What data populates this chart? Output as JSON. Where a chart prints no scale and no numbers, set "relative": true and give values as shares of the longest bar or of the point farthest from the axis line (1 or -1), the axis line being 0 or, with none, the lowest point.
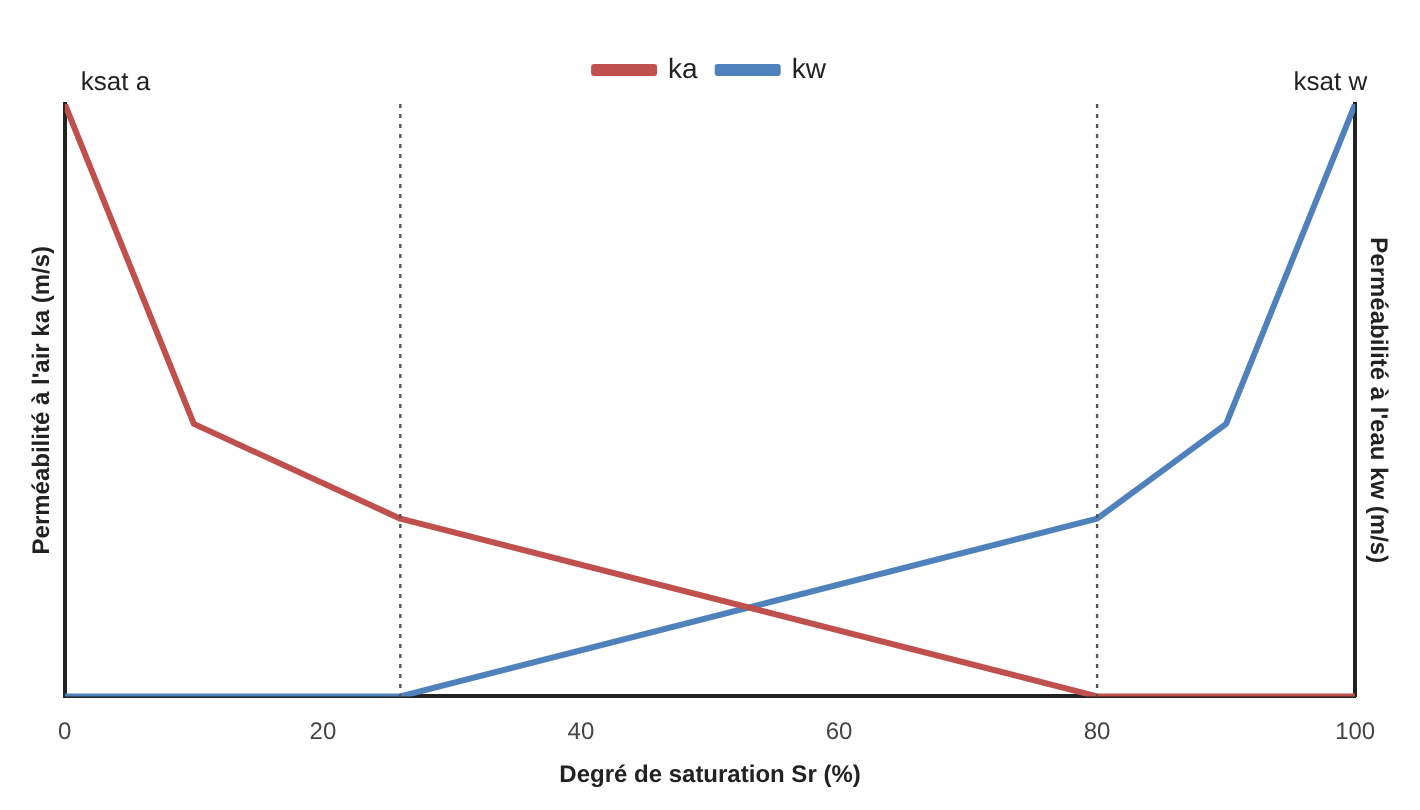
{
  "chart_data": {
    "type": "line",
    "relative": true,
    "xlabel": "Degré de saturation Sr (%)",
    "ylabel": "Perméabilité à l'air ka (m/s)",
    "y2label": "Perméabilité à l'eau kw (m/s)",
    "xlim": [
      0,
      100
    ],
    "xticks": [
      0,
      20,
      40,
      60,
      80,
      100
    ],
    "grid": false,
    "legend": "top",
    "marker": "none",
    "series": [
      {
        "name": "ka",
        "color": "#c0504d",
        "x": [
          0,
          10,
          26,
          80,
          100
        ],
        "values": [
          1,
          0.46,
          0.3,
          0,
          0
        ]
      },
      {
        "name": "kw",
        "color": "#4f81bd",
        "x": [
          0,
          26,
          80,
          90,
          100
        ],
        "values": [
          0,
          0,
          0.3,
          0.46,
          1
        ]
      }
    ],
    "ref_lines": [
      {
        "axis": "x",
        "value": 26,
        "color": "#555555",
        "line_style": "dotted"
      },
      {
        "axis": "x",
        "value": 80,
        "color": "#555555",
        "line_style": "dotted"
      }
    ],
    "annotations": [
      {
        "text": "ksat a",
        "x": 0,
        "y": 1
      },
      {
        "text": "ksat w",
        "x": 100,
        "y": 1
      }
    ]
  }
}
